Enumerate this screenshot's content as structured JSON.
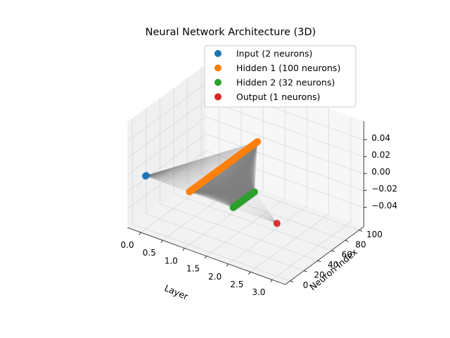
{
  "chart_data": {
    "type": "scatter",
    "projection": "3d",
    "title": "Neural Network Architecture (3D)",
    "xlabel": "Layer",
    "ylabel": "Neuron Index",
    "zlabel": "",
    "xlim": [
      0,
      3
    ],
    "ylim": [
      0,
      100
    ],
    "zlim": [
      -0.05,
      0.05
    ],
    "x_ticks": [
      "0.0",
      "0.5",
      "1.0",
      "1.5",
      "2.0",
      "2.5",
      "3.0"
    ],
    "y_ticks": [
      "0",
      "20",
      "40",
      "60",
      "80",
      "100"
    ],
    "z_ticks": [
      "0.04",
      "0.02",
      "0.00",
      "−0.02",
      "−0.04"
    ],
    "grid": true,
    "legend_position": "upper-right",
    "connections_color": "#808080",
    "series": [
      {
        "name": "Input (2 neurons)",
        "layer": 0,
        "neuron_count": 2,
        "color": "#1f77b4"
      },
      {
        "name": "Hidden 1 (100 neurons)",
        "layer": 1,
        "neuron_count": 100,
        "color": "#ff7f0e"
      },
      {
        "name": "Hidden 2 (32 neurons)",
        "layer": 2,
        "neuron_count": 32,
        "color": "#2ca02c"
      },
      {
        "name": "Output (1 neurons)",
        "layer": 3,
        "neuron_count": 1,
        "color": "#d62728"
      }
    ]
  }
}
